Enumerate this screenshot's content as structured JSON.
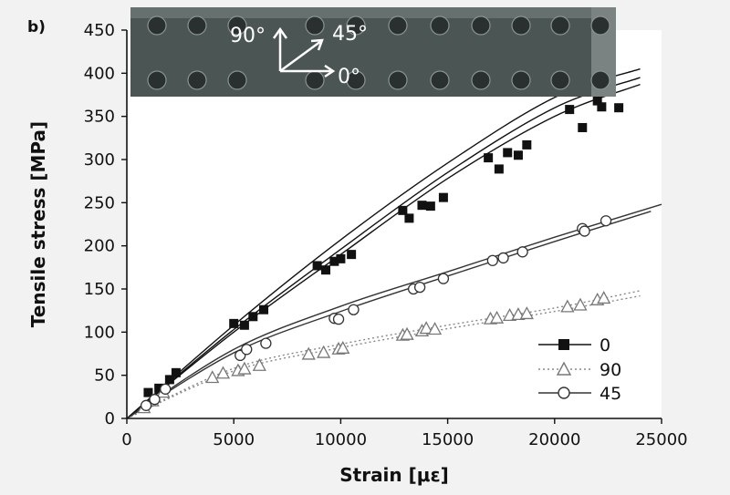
{
  "panel_label": "b)",
  "inset": {
    "labels": [
      "90°",
      "45°",
      "0°"
    ]
  },
  "chart_data": {
    "type": "scatter",
    "xlabel": "Strain [με]",
    "ylabel": "Tensile stress [MPa]",
    "xlim": [
      0,
      25000
    ],
    "ylim": [
      0,
      450
    ],
    "xticks": [
      0,
      5000,
      10000,
      15000,
      20000,
      25000
    ],
    "yticks": [
      0,
      50,
      100,
      150,
      200,
      250,
      300,
      350,
      400,
      450
    ],
    "grid": false,
    "legend_position": "bottom-right",
    "series": [
      {
        "name": "0",
        "marker": "filled-square",
        "line": "solid",
        "color": "#111111",
        "points": [
          [
            1000,
            30
          ],
          [
            1500,
            35
          ],
          [
            2000,
            45
          ],
          [
            2300,
            53
          ],
          [
            5000,
            110
          ],
          [
            5500,
            108
          ],
          [
            5900,
            118
          ],
          [
            6400,
            126
          ],
          [
            8900,
            177
          ],
          [
            9300,
            172
          ],
          [
            9700,
            182
          ],
          [
            10000,
            185
          ],
          [
            10500,
            190
          ],
          [
            12900,
            241
          ],
          [
            13200,
            232
          ],
          [
            13800,
            247
          ],
          [
            14200,
            246
          ],
          [
            14800,
            256
          ],
          [
            16900,
            302
          ],
          [
            17400,
            289
          ],
          [
            17800,
            308
          ],
          [
            18300,
            305
          ],
          [
            18700,
            317
          ],
          [
            20700,
            358
          ],
          [
            21300,
            337
          ],
          [
            22000,
            368
          ],
          [
            22200,
            361
          ],
          [
            23000,
            360
          ]
        ],
        "curves": [
          [
            [
              0,
              0
            ],
            [
              5000,
              108
            ],
            [
              10000,
              207
            ],
            [
              15000,
              296
            ],
            [
              20000,
              372
            ],
            [
              24000,
              405
            ]
          ],
          [
            [
              0,
              0
            ],
            [
              5000,
              103
            ],
            [
              10000,
              196
            ],
            [
              15000,
              285
            ],
            [
              20000,
              360
            ],
            [
              24000,
              395
            ]
          ],
          [
            [
              0,
              0
            ],
            [
              5000,
              100
            ],
            [
              10000,
              190
            ],
            [
              15000,
              278
            ],
            [
              20000,
              350
            ],
            [
              24000,
              387
            ]
          ]
        ]
      },
      {
        "name": "90",
        "marker": "open-triangle",
        "line": "dotted",
        "color": "#888888",
        "points": [
          [
            800,
            12
          ],
          [
            1200,
            20
          ],
          [
            1700,
            30
          ],
          [
            4000,
            47
          ],
          [
            4500,
            52
          ],
          [
            5200,
            55
          ],
          [
            5500,
            57
          ],
          [
            6200,
            61
          ],
          [
            8500,
            74
          ],
          [
            9200,
            76
          ],
          [
            9900,
            80
          ],
          [
            10100,
            81
          ],
          [
            12900,
            96
          ],
          [
            13100,
            97
          ],
          [
            13800,
            101
          ],
          [
            14000,
            104
          ],
          [
            14400,
            103
          ],
          [
            17000,
            115
          ],
          [
            17300,
            116
          ],
          [
            17900,
            119
          ],
          [
            18300,
            120
          ],
          [
            18700,
            121
          ],
          [
            20600,
            129
          ],
          [
            21200,
            131
          ],
          [
            22000,
            137
          ],
          [
            22300,
            139
          ]
        ],
        "curves": [
          [
            [
              0,
              0
            ],
            [
              5000,
              58
            ],
            [
              10000,
              86
            ],
            [
              15000,
              108
            ],
            [
              20000,
              128
            ],
            [
              24000,
              148
            ]
          ],
          [
            [
              0,
              0
            ],
            [
              5000,
              55
            ],
            [
              10000,
              82
            ],
            [
              15000,
              104
            ],
            [
              20000,
              124
            ],
            [
              24000,
              142
            ]
          ]
        ]
      },
      {
        "name": "45",
        "marker": "open-circle",
        "line": "solid",
        "color": "#333333",
        "points": [
          [
            900,
            15
          ],
          [
            1300,
            22
          ],
          [
            1800,
            34
          ],
          [
            5300,
            73
          ],
          [
            5600,
            80
          ],
          [
            6500,
            87
          ],
          [
            9700,
            116
          ],
          [
            9900,
            115
          ],
          [
            10600,
            126
          ],
          [
            13400,
            150
          ],
          [
            13700,
            152
          ],
          [
            14800,
            162
          ],
          [
            17100,
            183
          ],
          [
            17600,
            186
          ],
          [
            18500,
            193
          ],
          [
            21300,
            220
          ],
          [
            21400,
            217
          ],
          [
            22400,
            229
          ]
        ],
        "curves": [
          [
            [
              0,
              0
            ],
            [
              5000,
              80
            ],
            [
              10000,
              130
            ],
            [
              15000,
              170
            ],
            [
              20000,
              210
            ],
            [
              25000,
              248
            ]
          ],
          [
            [
              0,
              0
            ],
            [
              5000,
              76
            ],
            [
              10000,
              124
            ],
            [
              15000,
              165
            ],
            [
              20000,
              205
            ],
            [
              24500,
              240
            ]
          ]
        ]
      }
    ]
  }
}
